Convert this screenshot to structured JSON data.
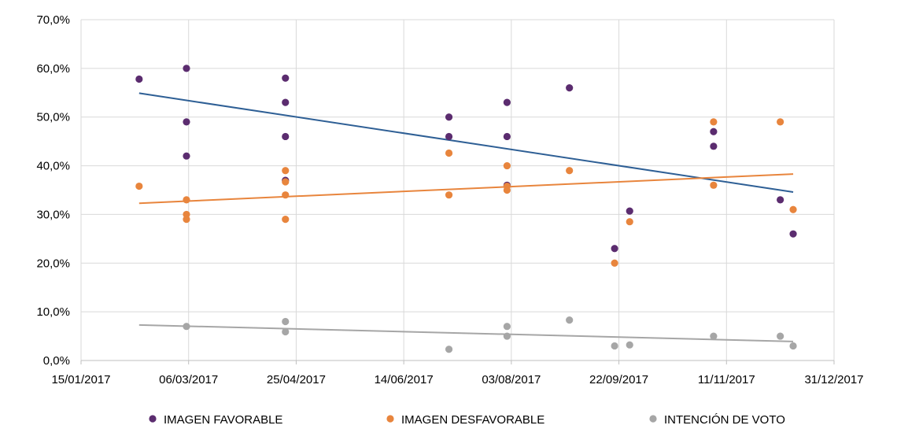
{
  "chart_data": {
    "type": "scatter",
    "title": "",
    "xlabel": "",
    "ylabel": "",
    "x_ticks": [
      "15/01/2017",
      "06/03/2017",
      "25/04/2017",
      "14/06/2017",
      "03/08/2017",
      "22/09/2017",
      "11/11/2017",
      "31/12/2017"
    ],
    "y_ticks": [
      "0,0%",
      "10,0%",
      "20,0%",
      "30,0%",
      "40,0%",
      "50,0%",
      "60,0%",
      "70,0%"
    ],
    "xlim": [
      "2017-01-15",
      "2017-12-31"
    ],
    "ylim": [
      0,
      70
    ],
    "grid": true,
    "legend_position": "bottom",
    "series": [
      {
        "name": "IMAGEN FAVORABLE",
        "color": "#5b2c6f",
        "points": [
          {
            "x": "2017-02-11",
            "y": 57.8
          },
          {
            "x": "2017-03-05",
            "y": 60.0
          },
          {
            "x": "2017-03-05",
            "y": 49.0
          },
          {
            "x": "2017-03-05",
            "y": 42.0
          },
          {
            "x": "2017-04-20",
            "y": 58.0
          },
          {
            "x": "2017-04-20",
            "y": 53.0
          },
          {
            "x": "2017-04-20",
            "y": 46.0
          },
          {
            "x": "2017-04-20",
            "y": 37.0
          },
          {
            "x": "2017-07-05",
            "y": 50.0
          },
          {
            "x": "2017-07-05",
            "y": 46.0
          },
          {
            "x": "2017-08-01",
            "y": 53.0
          },
          {
            "x": "2017-08-01",
            "y": 46.0
          },
          {
            "x": "2017-08-01",
            "y": 36.0
          },
          {
            "x": "2017-08-30",
            "y": 56.0
          },
          {
            "x": "2017-09-20",
            "y": 23.0
          },
          {
            "x": "2017-09-27",
            "y": 30.7
          },
          {
            "x": "2017-11-05",
            "y": 47.0
          },
          {
            "x": "2017-11-05",
            "y": 44.0
          },
          {
            "x": "2017-12-06",
            "y": 33.0
          },
          {
            "x": "2017-12-12",
            "y": 26.0
          }
        ],
        "trend": {
          "x": [
            "2017-02-11",
            "2017-12-12"
          ],
          "y": [
            54.9,
            34.6
          ],
          "color": "#2e5f95"
        }
      },
      {
        "name": "IMAGEN DESFAVORABLE",
        "color": "#e8853d",
        "points": [
          {
            "x": "2017-02-11",
            "y": 35.8
          },
          {
            "x": "2017-03-05",
            "y": 33.0
          },
          {
            "x": "2017-03-05",
            "y": 30.0
          },
          {
            "x": "2017-03-05",
            "y": 29.0
          },
          {
            "x": "2017-04-20",
            "y": 39.0
          },
          {
            "x": "2017-04-20",
            "y": 36.7
          },
          {
            "x": "2017-04-20",
            "y": 34.0
          },
          {
            "x": "2017-04-20",
            "y": 29.0
          },
          {
            "x": "2017-07-05",
            "y": 42.6
          },
          {
            "x": "2017-07-05",
            "y": 34.0
          },
          {
            "x": "2017-08-01",
            "y": 40.0
          },
          {
            "x": "2017-08-01",
            "y": 35.8
          },
          {
            "x": "2017-08-01",
            "y": 35.0
          },
          {
            "x": "2017-08-30",
            "y": 39.0
          },
          {
            "x": "2017-09-20",
            "y": 20.0
          },
          {
            "x": "2017-09-27",
            "y": 28.5
          },
          {
            "x": "2017-11-05",
            "y": 49.0
          },
          {
            "x": "2017-11-05",
            "y": 36.0
          },
          {
            "x": "2017-12-06",
            "y": 49.0
          },
          {
            "x": "2017-12-12",
            "y": 31.0
          }
        ],
        "trend": {
          "x": [
            "2017-02-11",
            "2017-12-12"
          ],
          "y": [
            32.3,
            38.3
          ],
          "color": "#e8853d"
        }
      },
      {
        "name": "INTENCIÓN DE VOTO",
        "color": "#a6a6a6",
        "points": [
          {
            "x": "2017-03-05",
            "y": 7.0
          },
          {
            "x": "2017-04-20",
            "y": 8.0
          },
          {
            "x": "2017-04-20",
            "y": 5.9
          },
          {
            "x": "2017-07-05",
            "y": 2.3
          },
          {
            "x": "2017-08-01",
            "y": 7.0
          },
          {
            "x": "2017-08-01",
            "y": 5.0
          },
          {
            "x": "2017-08-30",
            "y": 8.3
          },
          {
            "x": "2017-09-20",
            "y": 3.0
          },
          {
            "x": "2017-09-27",
            "y": 3.2
          },
          {
            "x": "2017-11-05",
            "y": 5.0
          },
          {
            "x": "2017-12-06",
            "y": 5.0
          },
          {
            "x": "2017-12-12",
            "y": 3.0
          }
        ],
        "trend": {
          "x": [
            "2017-02-11",
            "2017-12-12"
          ],
          "y": [
            7.3,
            3.9
          ],
          "color": "#a6a6a6"
        }
      }
    ]
  }
}
